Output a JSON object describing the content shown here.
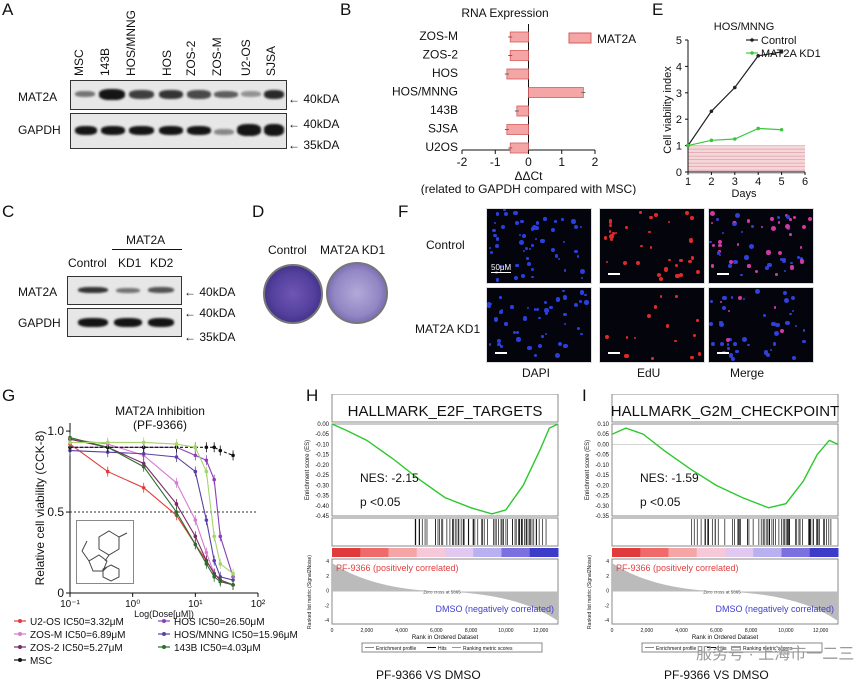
{
  "panels": {
    "A": {
      "letter": "A",
      "lanes": [
        "MSC",
        "143B",
        "HOS/MNNG",
        "HOS",
        "ZOS-2",
        "ZOS-M",
        "U2-OS",
        "SJSA"
      ],
      "rows": [
        {
          "label": "MAT2A",
          "marker": "40kDA"
        },
        {
          "label": "GAPDH",
          "marker": "40kDA"
        }
      ],
      "extra_marker": "35kDA"
    },
    "B": {
      "letter": "B"
    },
    "C": {
      "letter": "C",
      "group": "MAT2A",
      "lanes": [
        "Control",
        "KD1",
        "KD2"
      ],
      "rows": [
        {
          "label": "MAT2A",
          "marker": "40kDA"
        },
        {
          "label": "GAPDH",
          "marker": "40kDA"
        }
      ],
      "extra_marker": "35kDA"
    },
    "D": {
      "letter": "D",
      "labels": [
        "Control",
        "MAT2A KD1"
      ]
    },
    "E": {
      "letter": "E"
    },
    "F": {
      "letter": "F",
      "rows": [
        "Control",
        "MAT2A KD1"
      ],
      "columns": [
        "DAPI",
        "EdU",
        "Merge"
      ],
      "scale": "50μM"
    },
    "G": {
      "letter": "G",
      "structure": "chemical-structure"
    },
    "H": {
      "letter": "H",
      "footer": "PF-9366 VS DMSO"
    },
    "I": {
      "letter": "I",
      "footer": "PF-9366 VS DMSO"
    }
  },
  "watermark": "服务号 · 上海市一二三四科",
  "colors": {
    "bar": "#f4a6a6",
    "bar_edge": "#d65a5a",
    "control_line": "#222222",
    "kd_line": "#3cc63c",
    "gsea_line": "#2dc82d",
    "gsea_pos": "#e04040",
    "gsea_neg": "#4040d0"
  },
  "chart_data": [
    {
      "id": "B",
      "type": "bar",
      "orientation": "horizontal",
      "title": "RNA Expression",
      "categories": [
        "ZOS-M",
        "ZOS-2",
        "HOS",
        "HOS/MNNG",
        "143B",
        "SJSA",
        "U2OS"
      ],
      "series": [
        {
          "name": "MAT2A",
          "values": [
            -0.55,
            -0.55,
            -0.65,
            1.65,
            -0.35,
            -0.65,
            -0.55
          ]
        }
      ],
      "xlabel": "ΔΔCt",
      "xlabel2": "(related to GAPDH compared with MSC)",
      "xlim": [
        -2,
        2
      ],
      "xticks": [
        "-2",
        "-1",
        "0",
        "1",
        "2"
      ],
      "legend": "top-right"
    },
    {
      "id": "E",
      "type": "line",
      "title": "HOS/MNNG",
      "x": [
        1,
        2,
        3,
        4,
        5
      ],
      "series": [
        {
          "name": "Control",
          "values": [
            1.0,
            2.3,
            3.2,
            4.4,
            4.55
          ]
        },
        {
          "name": "MAT2A KD1",
          "values": [
            1.0,
            1.2,
            1.25,
            1.65,
            1.6
          ]
        }
      ],
      "xlabel": "Days",
      "ylabel": "Cell viability index",
      "xlim": [
        1,
        6
      ],
      "ylim": [
        0,
        5
      ],
      "xticks": [
        "1",
        "2",
        "3",
        "4",
        "5",
        "6"
      ],
      "yticks": [
        "0",
        "1",
        "2",
        "3",
        "4",
        "5"
      ],
      "legend": "top-right"
    },
    {
      "id": "G",
      "type": "line",
      "title": "MAT2A Inhibition",
      "subtitle": "(PF-9366)",
      "x_log": true,
      "xlabel": "Log(Dose[μM])",
      "ylabel": "Relative cell viability (CCK-8)",
      "xlim": [
        0.1,
        100
      ],
      "ylim": [
        0,
        1.05
      ],
      "xticks": [
        "10⁻¹",
        "10⁰",
        "10¹",
        "10²"
      ],
      "yticks": [
        "0",
        "0.5",
        "1.0"
      ],
      "reference_line": 0.5,
      "x": [
        0.1,
        0.4,
        1.5,
        5,
        10,
        15,
        20,
        25,
        40
      ],
      "series": [
        {
          "name": "U2-OS IC50=3.32μM",
          "color": "#e23b3b",
          "values": [
            0.92,
            0.75,
            0.65,
            0.48,
            0.3,
            0.2,
            0.12,
            0.08,
            0.05
          ]
        },
        {
          "name": "HOS IC50=26.50μM",
          "color": "#8a3fb8",
          "values": [
            0.9,
            0.9,
            0.9,
            0.9,
            0.85,
            0.82,
            0.7,
            0.35,
            0.1
          ]
        },
        {
          "name": "ZOS-M IC50=6.89μM",
          "color": "#d77bd0",
          "values": [
            0.95,
            0.92,
            0.85,
            0.68,
            0.45,
            0.25,
            0.12,
            0.08,
            0.05
          ]
        },
        {
          "name": "HOS/MNNG IC50=15.96μM",
          "color": "#5b3fa8",
          "values": [
            0.88,
            0.87,
            0.86,
            0.84,
            0.75,
            0.45,
            0.2,
            0.1,
            0.08
          ]
        },
        {
          "name": "ZOS-2 IC50=5.27μM",
          "color": "#7a2a6b",
          "values": [
            0.95,
            0.9,
            0.8,
            0.55,
            0.35,
            0.2,
            0.12,
            0.08,
            0.05
          ]
        },
        {
          "name": "143B IC50=4.03μM",
          "color": "#2c6e2a",
          "values": [
            0.96,
            0.9,
            0.78,
            0.5,
            0.3,
            0.18,
            0.1,
            0.07,
            0.05
          ]
        },
        {
          "name": "MSC",
          "color": "#111111",
          "values": [
            0.9,
            0.9,
            0.9,
            0.9,
            0.9,
            0.9,
            0.9,
            0.88,
            0.85
          ]
        }
      ],
      "extra_curve": {
        "color": "#a6d46b",
        "values": [
          0.93,
          0.93,
          0.93,
          0.92,
          0.9,
          0.75,
          0.35,
          0.18,
          0.12
        ]
      }
    },
    {
      "id": "H",
      "type": "line",
      "title": "HALLMARK_E2F_TARGETS",
      "ylabel": "Enrichment score (ES)",
      "yticks": [
        "0.00",
        "-0.05",
        "-0.10",
        "-0.15",
        "-0.20",
        "-0.25",
        "-0.30",
        "-0.35",
        "-0.40",
        "-0.45"
      ],
      "ylim": [
        -0.45,
        0.0
      ],
      "nes": "NES: -2.15",
      "p": "p <0.05",
      "pos_label": "PF-9366 (positively correlated)",
      "neg_label": "DMSO (negatively correlated)",
      "zero_cross": "Zero cross at 5865",
      "xlabel": "Rank in Ordered Dataset",
      "ylabel_bottom": "Ranked list metric (Signal2Noise)",
      "bottom_yticks": [
        "4",
        "2",
        "0",
        "-2",
        "-4"
      ],
      "xticks": [
        "0",
        "2,000",
        "4,000",
        "6,000",
        "8,000",
        "10,000",
        "12,000"
      ],
      "legend_items": [
        "Enrichment profile",
        "Hits",
        "Ranking metric scores"
      ],
      "es_curve": [
        [
          0,
          0.0
        ],
        [
          800,
          -0.03
        ],
        [
          2000,
          -0.08
        ],
        [
          3500,
          -0.17
        ],
        [
          5000,
          -0.27
        ],
        [
          6500,
          -0.36
        ],
        [
          8000,
          -0.41
        ],
        [
          9200,
          -0.44
        ],
        [
          10000,
          -0.42
        ],
        [
          11000,
          -0.3
        ],
        [
          12000,
          -0.12
        ],
        [
          12500,
          -0.02
        ],
        [
          13000,
          0.0
        ]
      ]
    },
    {
      "id": "I",
      "type": "line",
      "title": "HALLMARK_G2M_CHECKPOINT",
      "ylabel": "Enrichment score (ES)",
      "yticks": [
        "0.10",
        "0.05",
        "0.00",
        "-0.05",
        "-0.10",
        "-0.15",
        "-0.20",
        "-0.25",
        "-0.30",
        "-0.35"
      ],
      "ylim": [
        -0.35,
        0.1
      ],
      "nes": "NES: -1.59",
      "p": "p <0.05",
      "pos_label": "PF-9366 (positively correlated)",
      "neg_label": "DMSO (negatively correlated)",
      "zero_cross": "Zero cross at 5865",
      "xlabel": "Rank in Ordered Dataset",
      "ylabel_bottom": "Ranked list metric (Signal2Noise)",
      "bottom_yticks": [
        "4",
        "2",
        "0",
        "-2",
        "-4"
      ],
      "xticks": [
        "0",
        "2,000",
        "4,000",
        "6,000",
        "8,000",
        "10,000",
        "12,000"
      ],
      "legend_items": [
        "Enrichment profile",
        "Hits",
        "Ranking metric scores"
      ],
      "es_curve": [
        [
          0,
          0.05
        ],
        [
          800,
          0.08
        ],
        [
          1800,
          0.05
        ],
        [
          3000,
          -0.03
        ],
        [
          4500,
          -0.12
        ],
        [
          6000,
          -0.2
        ],
        [
          7500,
          -0.26
        ],
        [
          9000,
          -0.31
        ],
        [
          10000,
          -0.29
        ],
        [
          11000,
          -0.18
        ],
        [
          11800,
          -0.05
        ],
        [
          12500,
          0.02
        ],
        [
          13000,
          0.0
        ]
      ]
    }
  ]
}
